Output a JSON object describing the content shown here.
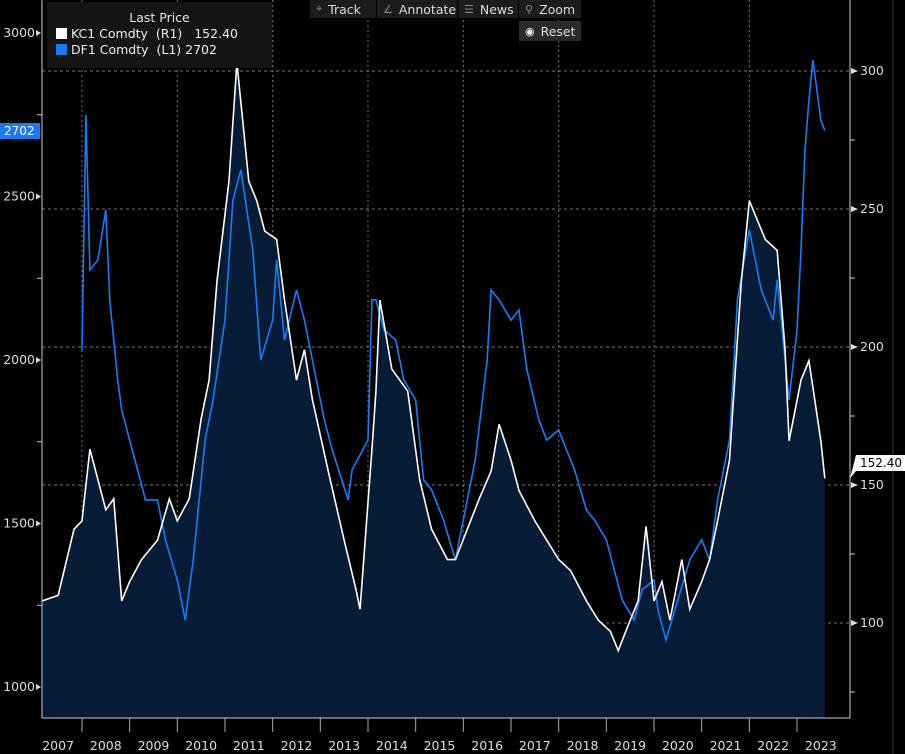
{
  "toolbar": {
    "track": "Track",
    "annotate": "Annotate",
    "news": "News",
    "zoom": "Zoom",
    "reset": "Reset",
    "icons": {
      "track": "crosshair-icon",
      "annotate": "pencil-icon",
      "news": "list-icon",
      "zoom": "magnifier-icon",
      "reset": "radio-icon"
    }
  },
  "legend": {
    "title": "Last Price",
    "items": [
      {
        "ticker": "KC1 Comdty",
        "axis": "(R1)",
        "value": "152.40",
        "color": "#ffffff"
      },
      {
        "ticker": "DF1 Comdty",
        "axis": "(L1)",
        "value": "2702",
        "color": "#1a7cf5"
      }
    ]
  },
  "chart_data": {
    "type": "line",
    "area_fill_series": "KC1 Comdty",
    "fill_color": "#061b36",
    "x_tick_labels": [
      "2007",
      "2008",
      "2009",
      "2010",
      "2011",
      "2012",
      "2013",
      "2014",
      "2015",
      "2016",
      "2017",
      "2018",
      "2019",
      "2020",
      "2021",
      "2022",
      "2023"
    ],
    "left_axis": {
      "ticks": [
        1000,
        1500,
        2000,
        2500,
        3000
      ],
      "ylim": [
        930,
        3100
      ],
      "last_tag": "2702"
    },
    "right_axis": {
      "ticks": [
        100,
        150,
        200,
        250,
        300
      ],
      "ylim": [
        65,
        325
      ],
      "last_tag": "152.40"
    },
    "grid": true,
    "legend_placement": "top-left",
    "series": [
      {
        "name": "KC1 Comdty",
        "axis": "right",
        "color": "#ffffff",
        "points": [
          [
            "2007-03",
            108
          ],
          [
            "2007-07",
            110
          ],
          [
            "2007-11",
            134
          ],
          [
            "2008-01",
            137
          ],
          [
            "2008-03",
            163
          ],
          [
            "2008-07",
            141
          ],
          [
            "2008-09",
            145
          ],
          [
            "2008-11",
            108
          ],
          [
            "2009-01",
            115
          ],
          [
            "2009-04",
            123
          ],
          [
            "2009-08",
            130
          ],
          [
            "2009-11",
            145
          ],
          [
            "2010-01",
            137
          ],
          [
            "2010-04",
            145
          ],
          [
            "2010-07",
            174
          ],
          [
            "2010-09",
            188
          ],
          [
            "2010-11",
            224
          ],
          [
            "2011-02",
            260
          ],
          [
            "2011-04",
            303
          ],
          [
            "2011-07",
            260
          ],
          [
            "2011-09",
            253
          ],
          [
            "2011-11",
            242
          ],
          [
            "2012-02",
            239
          ],
          [
            "2012-04",
            217
          ],
          [
            "2012-07",
            188
          ],
          [
            "2012-09",
            199
          ],
          [
            "2012-11",
            181
          ],
          [
            "2013-03",
            155
          ],
          [
            "2013-07",
            130
          ],
          [
            "2013-10",
            112
          ],
          [
            "2013-11",
            105
          ],
          [
            "2014-02",
            163
          ],
          [
            "2014-03",
            184
          ],
          [
            "2014-04",
            217
          ],
          [
            "2014-07",
            192
          ],
          [
            "2014-09",
            188
          ],
          [
            "2014-11",
            184
          ],
          [
            "2015-02",
            152
          ],
          [
            "2015-05",
            134
          ],
          [
            "2015-09",
            123
          ],
          [
            "2015-11",
            123
          ],
          [
            "2016-02",
            134
          ],
          [
            "2016-05",
            145
          ],
          [
            "2016-08",
            155
          ],
          [
            "2016-10",
            172
          ],
          [
            "2017-01",
            159
          ],
          [
            "2017-03",
            148
          ],
          [
            "2017-07",
            137
          ],
          [
            "2017-10",
            130
          ],
          [
            "2018-01",
            123
          ],
          [
            "2018-04",
            119
          ],
          [
            "2018-08",
            108
          ],
          [
            "2018-11",
            101
          ],
          [
            "2019-02",
            97
          ],
          [
            "2019-04",
            90
          ],
          [
            "2019-07",
            101
          ],
          [
            "2019-09",
            108
          ],
          [
            "2019-11",
            135
          ],
          [
            "2020-01",
            108
          ],
          [
            "2020-03",
            115
          ],
          [
            "2020-05",
            101
          ],
          [
            "2020-08",
            123
          ],
          [
            "2020-10",
            105
          ],
          [
            "2021-01",
            115
          ],
          [
            "2021-03",
            123
          ],
          [
            "2021-05",
            137
          ],
          [
            "2021-08",
            159
          ],
          [
            "2021-10",
            203
          ],
          [
            "2021-11",
            224
          ],
          [
            "2022-01",
            253
          ],
          [
            "2022-03",
            246
          ],
          [
            "2022-05",
            239
          ],
          [
            "2022-08",
            235
          ],
          [
            "2022-10",
            199
          ],
          [
            "2022-11",
            166
          ],
          [
            "2023-02",
            188
          ],
          [
            "2023-04",
            195
          ],
          [
            "2023-07",
            166
          ],
          [
            "2023-08",
            152.4
          ]
        ]
      },
      {
        "name": "DF1 Comdty",
        "axis": "left",
        "color": "#1a7cf5",
        "points": [
          [
            "2008-01",
            2031
          ],
          [
            "2008-02",
            2749
          ],
          [
            "2008-03",
            2275
          ],
          [
            "2008-05",
            2306
          ],
          [
            "2008-07",
            2459
          ],
          [
            "2008-08",
            2183
          ],
          [
            "2008-10",
            1939
          ],
          [
            "2008-11",
            1847
          ],
          [
            "2009-01",
            1755
          ],
          [
            "2009-03",
            1664
          ],
          [
            "2009-05",
            1572
          ],
          [
            "2009-08",
            1572
          ],
          [
            "2009-10",
            1450
          ],
          [
            "2010-01",
            1327
          ],
          [
            "2010-02",
            1266
          ],
          [
            "2010-03",
            1205
          ],
          [
            "2010-05",
            1388
          ],
          [
            "2010-08",
            1755
          ],
          [
            "2010-10",
            1878
          ],
          [
            "2011-01",
            2122
          ],
          [
            "2011-03",
            2489
          ],
          [
            "2011-05",
            2581
          ],
          [
            "2011-08",
            2336
          ],
          [
            "2011-10",
            2000
          ],
          [
            "2012-01",
            2122
          ],
          [
            "2012-02",
            2306
          ],
          [
            "2012-04",
            2061
          ],
          [
            "2012-07",
            2214
          ],
          [
            "2012-09",
            2122
          ],
          [
            "2012-11",
            2000
          ],
          [
            "2013-02",
            1817
          ],
          [
            "2013-04",
            1725
          ],
          [
            "2013-08",
            1572
          ],
          [
            "2013-09",
            1664
          ],
          [
            "2014-01",
            1755
          ],
          [
            "2014-02",
            2184
          ],
          [
            "2014-03",
            2184
          ],
          [
            "2014-05",
            2092
          ],
          [
            "2014-08",
            2061
          ],
          [
            "2014-10",
            1939
          ],
          [
            "2015-01",
            1878
          ],
          [
            "2015-03",
            1633
          ],
          [
            "2015-05",
            1603
          ],
          [
            "2015-08",
            1511
          ],
          [
            "2015-11",
            1388
          ],
          [
            "2016-02",
            1572
          ],
          [
            "2016-04",
            1694
          ],
          [
            "2016-07",
            2000
          ],
          [
            "2016-08",
            2214
          ],
          [
            "2016-10",
            2184
          ],
          [
            "2017-01",
            2122
          ],
          [
            "2017-03",
            2153
          ],
          [
            "2017-05",
            1970
          ],
          [
            "2017-08",
            1817
          ],
          [
            "2017-10",
            1755
          ],
          [
            "2018-01",
            1786
          ],
          [
            "2018-03",
            1725
          ],
          [
            "2018-05",
            1664
          ],
          [
            "2018-08",
            1541
          ],
          [
            "2018-10",
            1511
          ],
          [
            "2019-01",
            1450
          ],
          [
            "2019-03",
            1358
          ],
          [
            "2019-05",
            1266
          ],
          [
            "2019-08",
            1205
          ],
          [
            "2019-10",
            1297
          ],
          [
            "2020-01",
            1327
          ],
          [
            "2020-02",
            1235
          ],
          [
            "2020-04",
            1144
          ],
          [
            "2020-07",
            1266
          ],
          [
            "2020-10",
            1388
          ],
          [
            "2021-01",
            1450
          ],
          [
            "2021-03",
            1388
          ],
          [
            "2021-05",
            1572
          ],
          [
            "2021-08",
            1755
          ],
          [
            "2021-10",
            2184
          ],
          [
            "2022-01",
            2398
          ],
          [
            "2022-02",
            2336
          ],
          [
            "2022-04",
            2214
          ],
          [
            "2022-07",
            2122
          ],
          [
            "2022-08",
            2245
          ],
          [
            "2022-10",
            2000
          ],
          [
            "2022-11",
            1878
          ],
          [
            "2023-01",
            2092
          ],
          [
            "2023-02",
            2336
          ],
          [
            "2023-03",
            2642
          ],
          [
            "2023-04",
            2795
          ],
          [
            "2023-05",
            2917
          ],
          [
            "2023-07",
            2734
          ],
          [
            "2023-08",
            2702
          ]
        ]
      }
    ]
  }
}
